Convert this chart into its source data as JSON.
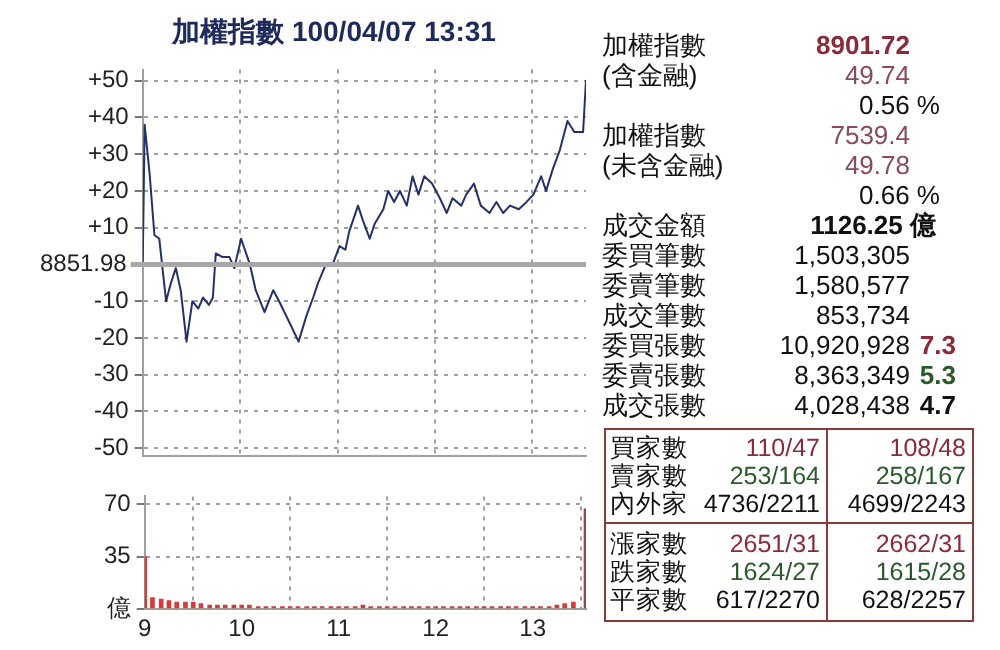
{
  "chart_data": [
    {
      "type": "line",
      "title": "加權指數 100/04/07 13:31",
      "x": [
        9,
        9.02,
        9.07,
        9.12,
        9.17,
        9.24,
        9.29,
        9.34,
        9.39,
        9.45,
        9.51,
        9.57,
        9.62,
        9.68,
        9.72,
        9.75,
        9.82,
        9.89,
        9.94,
        10.01,
        10.1,
        10.16,
        10.25,
        10.34,
        10.4,
        10.51,
        10.6,
        10.68,
        10.75,
        10.8,
        10.88,
        10.95,
        11.02,
        11.08,
        11.12,
        11.21,
        11.26,
        11.33,
        11.38,
        11.47,
        11.52,
        11.58,
        11.64,
        11.71,
        11.77,
        11.83,
        11.89,
        11.97,
        12.05,
        12.12,
        12.18,
        12.27,
        12.32,
        12.4,
        12.47,
        12.56,
        12.63,
        12.7,
        12.77,
        12.86,
        12.94,
        13.01,
        13.09,
        13.14,
        13.21,
        13.28,
        13.36,
        13.43,
        13.52,
        13.55
      ],
      "series": [
        {
          "color": "#24306a",
          "values": [
            0,
            38,
            25,
            8,
            7,
            -10,
            -5,
            -1,
            -7,
            -21,
            -10,
            -12,
            -9,
            -11,
            -9,
            3,
            2,
            2,
            -1,
            7,
            0,
            -7,
            -13,
            -7,
            -10,
            -16,
            -21,
            -14,
            -9,
            -5,
            0,
            0,
            5,
            4,
            9,
            16,
            12,
            7,
            11,
            15,
            20,
            17,
            20,
            16,
            24,
            19,
            24,
            22,
            18,
            14,
            18,
            16,
            19,
            22,
            16,
            14,
            17,
            14,
            16,
            15,
            17,
            19,
            24,
            20,
            26,
            31,
            39,
            36,
            36,
            50
          ]
        }
      ],
      "xlim": [
        9,
        13.55
      ],
      "xticks": [
        9,
        10,
        11,
        12,
        13
      ],
      "ylim": [
        -52,
        53
      ],
      "yticks": [
        {
          "value": 50,
          "label": "+50"
        },
        {
          "value": 40,
          "label": "+40"
        },
        {
          "value": 30,
          "label": "+30"
        },
        {
          "value": 20,
          "label": "+20"
        },
        {
          "value": 10,
          "label": "+10"
        },
        {
          "value": 0,
          "label": null
        },
        -10,
        -20,
        -30,
        -40,
        -50
      ],
      "ref_lines": [
        {
          "axis": "y",
          "value": 0,
          "color": "#a8a8a8"
        }
      ],
      "annotations": [
        "8851.98"
      ],
      "grid": true,
      "tick_labels": "y",
      "marker": "none",
      "legend": false
    },
    {
      "type": "bar",
      "x": [
        9,
        9.08,
        9.17,
        9.25,
        9.33,
        9.42,
        9.5,
        9.58,
        9.67,
        9.75,
        9.83,
        9.92,
        10,
        10.08,
        10.17,
        10.25,
        10.33,
        10.42,
        10.5,
        10.58,
        10.67,
        10.75,
        10.83,
        10.92,
        11,
        11.08,
        11.17,
        11.25,
        11.33,
        11.42,
        11.5,
        11.58,
        11.67,
        11.75,
        11.83,
        11.92,
        12,
        12.08,
        12.17,
        12.25,
        12.33,
        12.42,
        12.5,
        12.58,
        12.67,
        12.75,
        12.83,
        12.92,
        13,
        13.08,
        13.17,
        13.25,
        13.33,
        13.42,
        13.55
      ],
      "values": [
        35,
        8,
        7,
        6,
        5,
        5,
        5,
        4,
        3,
        3,
        3,
        3,
        3,
        3,
        2,
        2,
        2,
        2,
        2,
        2,
        2,
        2,
        2,
        2,
        2,
        2,
        2,
        3,
        2,
        2,
        2,
        2,
        2,
        2,
        2,
        2,
        2,
        2,
        2,
        2,
        2,
        2,
        2,
        2,
        2,
        2,
        2,
        2,
        2,
        2,
        2,
        3,
        4,
        5,
        67
      ],
      "colors": [
        "#d63a3a",
        "#d63a3a",
        "#d63a3a",
        "#d63a3a",
        "#d63a3a",
        "#d63a3a",
        "#d63a3a",
        "#d63a3a",
        "#d63a3a",
        "#d63a3a",
        "#d63a3a",
        "#d63a3a",
        "#d63a3a",
        "#d63a3a",
        "#d63a3a",
        "#d63a3a",
        "#d63a3a",
        "#d63a3a",
        "#d63a3a",
        "#d63a3a",
        "#d63a3a",
        "#d63a3a",
        "#d63a3a",
        "#d63a3a",
        "#d63a3a",
        "#d63a3a",
        "#d63a3a",
        "#d63a3a",
        "#d63a3a",
        "#d63a3a",
        "#d63a3a",
        "#d63a3a",
        "#d63a3a",
        "#d63a3a",
        "#d63a3a",
        "#d63a3a",
        "#d63a3a",
        "#d63a3a",
        "#d63a3a",
        "#d63a3a",
        "#d63a3a",
        "#d63a3a",
        "#d63a3a",
        "#d63a3a",
        "#d63a3a",
        "#d63a3a",
        "#d63a3a",
        "#d63a3a",
        "#d63a3a",
        "#d63a3a",
        "#d63a3a",
        "#d63a3a",
        "#d63a3a",
        "#d63a3a",
        "#8c4a4a"
      ],
      "xlim": [
        9,
        13.55
      ],
      "xticks": [
        9,
        10,
        11,
        12,
        13
      ],
      "ylim": [
        0,
        75
      ],
      "yticks": [
        {
          "value": 0,
          "label": "億"
        },
        35,
        70
      ],
      "grid": true,
      "legend": false
    },
    {
      "type": "other",
      "annotations": [
        "加權指數",
        "8901.72",
        "(含金融)",
        "49.74",
        "0.56 %",
        "加權指數",
        "7539.4",
        "(未含金融)",
        "49.78",
        "0.66 %",
        "成交金額",
        "1126.25 億",
        "委買筆數",
        "1,503,305",
        "委賣筆數",
        "1,580,577",
        "成交筆數",
        "853,734",
        "委買張數",
        "10,920,928",
        "7.3",
        "委賣張數",
        "8,363,349",
        "5.3",
        "成交張數",
        "4,028,438",
        "4.7",
        "買家數",
        "110/47",
        "108/48",
        "賣家數",
        "253/164",
        "258/167",
        "內外家",
        "4736/2211",
        "4699/2243",
        "漲家數",
        "2651/31",
        "2662/31",
        "跌家數",
        "1624/27",
        "1615/28",
        "平家數",
        "617/2270",
        "628/2257"
      ]
    }
  ]
}
